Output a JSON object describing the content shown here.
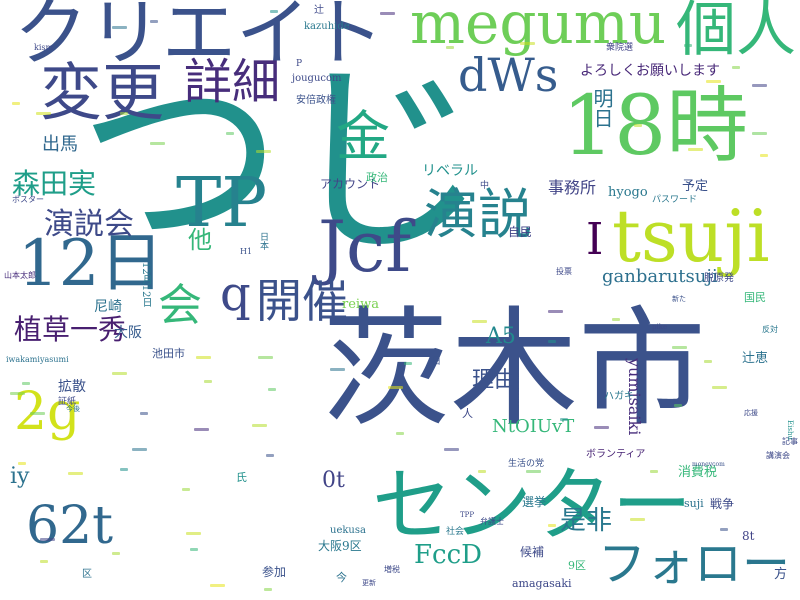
{
  "cloud": {
    "words": [
      {
        "text": "つじ",
        "color": "#21918c"
      },
      {
        "text": "茨木市",
        "color": "#3b528b"
      },
      {
        "text": "18時",
        "color": "#5ec962"
      },
      {
        "text": "クリエイト",
        "color": "#3b528b"
      },
      {
        "text": "megumu",
        "color": "#6ece58"
      },
      {
        "text": "個人",
        "color": "#35b779"
      },
      {
        "text": "センター",
        "color": "#1f9e89"
      },
      {
        "text": "tsuji",
        "color": "#bddf26"
      },
      {
        "text": "Jcf",
        "color": "#3e4a89"
      },
      {
        "text": "TP",
        "color": "#26828e"
      },
      {
        "text": "12日",
        "color": "#31688e"
      },
      {
        "text": "変更",
        "color": "#3e4989"
      },
      {
        "text": "dWs",
        "color": "#365c8d"
      },
      {
        "text": "詳細",
        "color": "#472d7b"
      },
      {
        "text": "金",
        "color": "#22a884"
      },
      {
        "text": "演説",
        "color": "#26828e"
      },
      {
        "text": "2g",
        "color": "#d2e21b"
      },
      {
        "text": "62t",
        "color": "#31688e"
      },
      {
        "text": "フォロー",
        "color": "#2a788e"
      },
      {
        "text": "開催",
        "color": "#3b528b"
      },
      {
        "text": "q",
        "color": "#3e4a89"
      },
      {
        "text": "会",
        "color": "#35b779"
      },
      {
        "text": "演説会",
        "color": "#3e4a89"
      },
      {
        "text": "森田実",
        "color": "#1f9e89"
      },
      {
        "text": "植草一秀",
        "color": "#481f70"
      },
      {
        "text": "I",
        "color": "#440154"
      },
      {
        "text": "明日",
        "color": "#2c728e"
      },
      {
        "text": "ganbarutsuji",
        "color": "#2d708e"
      },
      {
        "text": "A5",
        "color": "#23888e"
      },
      {
        "text": "是非",
        "color": "#2a788e"
      },
      {
        "text": "FccD",
        "color": "#1f9e89"
      },
      {
        "text": "理由",
        "color": "#3b528b"
      },
      {
        "text": "他",
        "color": "#35b779"
      },
      {
        "text": "出馬",
        "color": "#31688e"
      },
      {
        "text": "NtOIUvT",
        "color": "#35b779"
      },
      {
        "text": "yumisaiki",
        "color": "#472d7b"
      },
      {
        "text": "0t",
        "color": "#414487"
      },
      {
        "text": "iy",
        "color": "#2c728e"
      },
      {
        "text": "よろしくお願いします",
        "color": "#482878"
      },
      {
        "text": "事務所",
        "color": "#414487"
      },
      {
        "text": "リベラル",
        "color": "#21918c"
      },
      {
        "text": "アカウント",
        "color": "#414487"
      },
      {
        "text": "hyogo",
        "color": "#2a788e"
      },
      {
        "text": "予定",
        "color": "#3b528b"
      },
      {
        "text": "自民",
        "color": "#414487"
      },
      {
        "text": "政治",
        "color": "#35b779"
      },
      {
        "text": "大阪",
        "color": "#365c8d"
      },
      {
        "text": "尼崎",
        "color": "#2c728e"
      },
      {
        "text": "拡散",
        "color": "#3b528b"
      },
      {
        "text": "reiwa",
        "color": "#7ad151"
      },
      {
        "text": "消費税",
        "color": "#35b779"
      },
      {
        "text": "戦争",
        "color": "#3e4a89"
      },
      {
        "text": "選挙",
        "color": "#2a788e"
      },
      {
        "text": "候補",
        "color": "#3e4a89"
      },
      {
        "text": "参加",
        "color": "#3b528b"
      },
      {
        "text": "amagasaki",
        "color": "#3e4989"
      },
      {
        "text": "大阪9区",
        "color": "#2a788e"
      },
      {
        "text": "uekusa",
        "color": "#2c728e"
      },
      {
        "text": "方",
        "color": "#3b528b"
      },
      {
        "text": "8t",
        "color": "#414487"
      },
      {
        "text": "suji",
        "color": "#2c728e"
      },
      {
        "text": "ボランティア",
        "color": "#482475"
      },
      {
        "text": "辻恵",
        "color": "#2c728e"
      },
      {
        "text": "国民",
        "color": "#35b779"
      },
      {
        "text": "脱原発",
        "color": "#3e4a89"
      },
      {
        "text": "ハガキ",
        "color": "#2a788e"
      },
      {
        "text": "人",
        "color": "#3e4989"
      },
      {
        "text": "池田市",
        "color": "#3b528b"
      },
      {
        "text": "氏",
        "color": "#21918c"
      },
      {
        "text": "今",
        "color": "#2c728e"
      },
      {
        "text": "9区",
        "color": "#35b779"
      },
      {
        "text": "kazuhide",
        "color": "#2a788e"
      },
      {
        "text": "jougucom",
        "color": "#3e4a89"
      },
      {
        "text": "安倍政権",
        "color": "#3b528b"
      },
      {
        "text": "辻",
        "color": "#3e4989"
      },
      {
        "text": "衆院選",
        "color": "#414487"
      },
      {
        "text": "12月12日",
        "color": "#2a788e"
      },
      {
        "text": "iwakamiyasumi",
        "color": "#2c728e"
      },
      {
        "text": "証紙",
        "color": "#3e4a89"
      },
      {
        "text": "社会",
        "color": "#2a788e"
      },
      {
        "text": "生活の党",
        "color": "#3b528b"
      },
      {
        "text": "パスワード",
        "color": "#2a788e"
      },
      {
        "text": "山本太郎",
        "color": "#472d7b"
      },
      {
        "text": "ポスター",
        "color": "#3e4989"
      },
      {
        "text": "kism",
        "color": "#3e4989"
      },
      {
        "text": "P",
        "color": "#3e4a89"
      },
      {
        "text": "日本",
        "color": "#2c728e"
      },
      {
        "text": "H1",
        "color": "#3b528b"
      },
      {
        "text": "TPP",
        "color": "#3e4989"
      },
      {
        "text": "弁護士",
        "color": "#3e4a89"
      },
      {
        "text": "更新",
        "color": "#3e4989"
      },
      {
        "text": "増税",
        "color": "#3e4a89"
      },
      {
        "text": "区",
        "color": "#2c728e"
      },
      {
        "text": "中",
        "color": "#3e4a89"
      },
      {
        "text": "日",
        "color": "#3b528b"
      },
      {
        "text": "投票",
        "color": "#3e4989"
      },
      {
        "text": "記事",
        "color": "#3e4a89"
      },
      {
        "text": "新た",
        "color": "#3b528b"
      },
      {
        "text": "反対",
        "color": "#2a788e"
      },
      {
        "text": "講演会",
        "color": "#3e4989"
      },
      {
        "text": "pike",
        "color": "#3e4a89"
      },
      {
        "text": "Eishu",
        "color": "#21918c"
      },
      {
        "text": "今後",
        "color": "#2c728e"
      },
      {
        "text": "応援",
        "color": "#3e4a89"
      },
      {
        "text": "moneycom",
        "color": "#3b528b"
      }
    ],
    "specks": [
      "#e5e419",
      "#d0e11c",
      "#a8db34",
      "#7ad151",
      "#5ec962",
      "#b5de2b",
      "#3b528b",
      "#2c728e",
      "#21918c",
      "#472d7b",
      "#9bd93c",
      "#c8e020",
      "#35b779",
      "#e5e419",
      "#86d549",
      "#414487",
      "#bddf26",
      "#6ece58"
    ]
  }
}
